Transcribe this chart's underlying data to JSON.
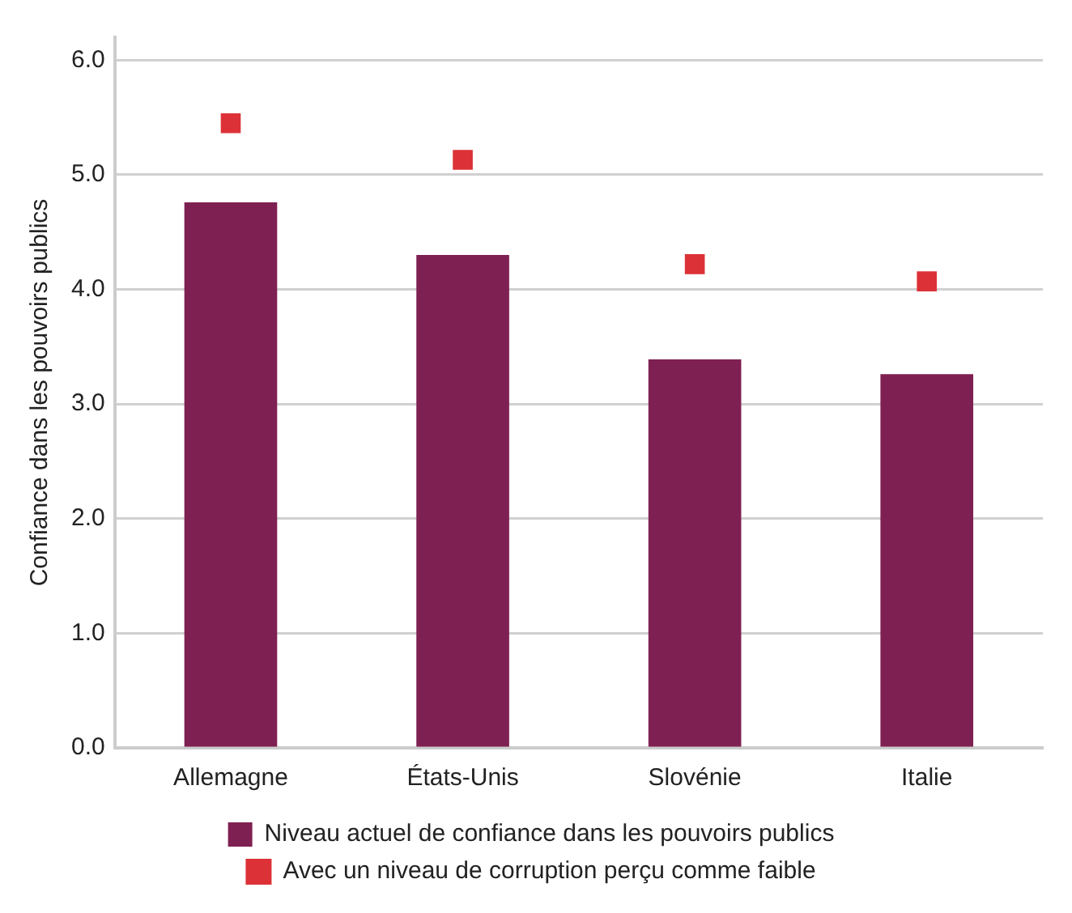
{
  "chart_data": {
    "type": "bar",
    "ylabel": "Confiance dans les pouvoirs publics",
    "categories": [
      "Allemagne",
      "États-Unis",
      "Slovénie",
      "Italie"
    ],
    "series": [
      {
        "name": "Niveau actuel de confiance dans les pouvoirs publics",
        "color": "#7f2052",
        "values": [
          4.76,
          4.3,
          3.39,
          3.26
        ]
      },
      {
        "name": "Avec un niveau de corruption perçu comme faible",
        "type": "scatter",
        "marker": "square",
        "color": "#dc3237",
        "x": [
          "Allemagne",
          "États-Unis",
          "Slovénie",
          "Italie"
        ],
        "values": [
          5.45,
          5.13,
          4.22,
          4.07
        ]
      }
    ],
    "ylim": [
      0,
      6.2
    ],
    "yticks": [
      {
        "value": 0,
        "label": "0.0"
      },
      {
        "value": 1,
        "label": "1.0"
      },
      {
        "value": 2,
        "label": "2.0"
      },
      {
        "value": 3,
        "label": "3.0"
      },
      {
        "value": 4,
        "label": "4.0"
      },
      {
        "value": 5,
        "label": "5.0"
      },
      {
        "value": 6,
        "label": "6.0"
      }
    ],
    "grid": "y",
    "legend": "bottom"
  }
}
